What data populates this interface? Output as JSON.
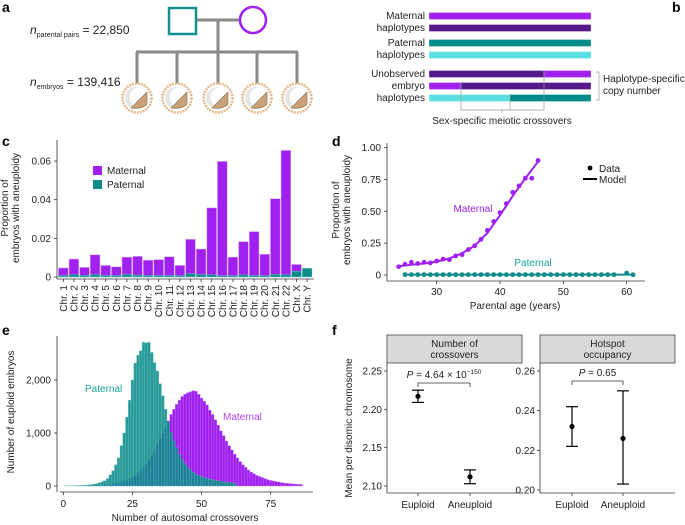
{
  "panel_labels": {
    "a": "a",
    "b": "b",
    "c": "c",
    "d": "d",
    "e": "e",
    "f": "f"
  },
  "panel_a": {
    "n_symbol": "n",
    "parental_pairs_sub": "parental pairs",
    "parental_pairs_value": " = 22,850",
    "embryos_sub": "embryos",
    "embryos_value": " = 139,416",
    "colors": {
      "father": "#13908f",
      "mother": "#a020f0",
      "link": "#8a8a8a",
      "embryo": "#e3b98a"
    }
  },
  "panel_b": {
    "maternal_label": [
      "Maternal",
      "haplotypes"
    ],
    "paternal_label": [
      "Paternal",
      "haplotypes"
    ],
    "embryo_label": [
      "Unobserved",
      "embryo",
      "haplotypes"
    ],
    "copy_number_label": [
      "Haplotype-specific",
      "copy number"
    ],
    "crossover_label": "Sex-specific meiotic crossovers",
    "colors": {
      "maternal_1": "#a020f0",
      "maternal_2": "#55198b",
      "paternal_1": "#008b8b",
      "paternal_2": "#5ae0e0"
    }
  },
  "chart_data": [
    {
      "id": "c",
      "type": "bar",
      "categories": [
        "Chr. 1",
        "Chr. 2",
        "Chr. 3",
        "Chr. 4",
        "Chr. 5",
        "Chr. 6",
        "Chr. 7",
        "Chr. 8",
        "Chr. 9",
        "Chr. 10",
        "Chr. 11",
        "Chr. 12",
        "Chr. 13",
        "Chr. 14",
        "Chr. 15",
        "Chr. 16",
        "Chr. 17",
        "Chr. 18",
        "Chr. 19",
        "Chr. 20",
        "Chr. 21",
        "Chr. 22",
        "Chr. X",
        "Chr. Y"
      ],
      "series": [
        {
          "name": "Maternal",
          "color": "#a020f0",
          "values": [
            0.0047,
            0.0093,
            0.005,
            0.0115,
            0.006,
            0.0053,
            0.0103,
            0.0107,
            0.0087,
            0.009,
            0.0105,
            0.006,
            0.0195,
            0.0145,
            0.0358,
            0.0598,
            0.0103,
            0.0183,
            0.0235,
            0.0118,
            0.0405,
            0.0655,
            0.0065,
            0
          ]
        },
        {
          "name": "Paternal",
          "color": "#0f8c8a",
          "values": [
            0.0008,
            0.0013,
            0.0009,
            0.0013,
            0.0008,
            0.0008,
            0.0013,
            0.001,
            0.0008,
            0.0008,
            0.0008,
            0.0007,
            0.0018,
            0.0013,
            0.0012,
            0.0007,
            0.0007,
            0.0011,
            0.0008,
            0.0007,
            0.0014,
            0.0012,
            0.003,
            0.0045
          ]
        }
      ],
      "ylabel": [
        "Proportion of",
        "embryos with aneuploidy"
      ],
      "ylim": [
        0,
        0.066
      ],
      "yticks": [
        0,
        0.02,
        0.04,
        0.06
      ],
      "ytick_labels": [
        "0",
        "0.02",
        "0.04",
        "0.06"
      ],
      "legend": "top-left",
      "grid": false
    },
    {
      "id": "d",
      "type": "line",
      "xlabel": "Parental age (years)",
      "ylabel": [
        "Proportion of",
        "embryos with aneuploidy"
      ],
      "xlim": [
        23,
        62
      ],
      "ylim": [
        0,
        1
      ],
      "xticks": [
        30,
        40,
        50,
        60
      ],
      "yticks": [
        0,
        0.25,
        0.5,
        0.75,
        1.0
      ],
      "ytick_labels": [
        "0",
        "0.25",
        "0.50",
        "0.75",
        "1.00"
      ],
      "legend": {
        "position": "top-right",
        "data": "Data",
        "model": "Model"
      },
      "series": [
        {
          "name": "Maternal",
          "color": "#a020f0",
          "data_x": [
            24,
            25,
            26,
            27,
            28,
            29,
            30,
            31,
            32,
            33,
            34,
            35,
            36,
            37,
            38,
            39,
            40,
            41,
            42,
            43,
            44,
            45,
            46
          ],
          "data_y": [
            0.065,
            0.085,
            0.1,
            0.09,
            0.1,
            0.095,
            0.11,
            0.125,
            0.12,
            0.15,
            0.16,
            0.2,
            0.23,
            0.28,
            0.35,
            0.42,
            0.49,
            0.56,
            0.65,
            0.7,
            0.76,
            0.76,
            0.9
          ],
          "model_x": [
            24,
            26,
            28,
            30,
            32,
            34,
            36,
            38,
            40,
            42,
            44,
            46
          ],
          "model_y": [
            0.07,
            0.08,
            0.09,
            0.105,
            0.13,
            0.17,
            0.23,
            0.33,
            0.47,
            0.62,
            0.76,
            0.89
          ]
        },
        {
          "name": "Paternal",
          "color": "#0f8c8a",
          "data_x": [
            25,
            26,
            27,
            28,
            29,
            30,
            31,
            32,
            33,
            34,
            35,
            36,
            37,
            38,
            39,
            40,
            41,
            42,
            43,
            44,
            45,
            46,
            47,
            48,
            49,
            50,
            51,
            52,
            53,
            54,
            55,
            56,
            57,
            58,
            60,
            61
          ],
          "data_y": [
            0.003,
            0.003,
            0.003,
            0.003,
            0.003,
            0.003,
            0.003,
            0.003,
            0.003,
            0.003,
            0.003,
            0.003,
            0.003,
            0.003,
            0.003,
            0.003,
            0.003,
            0.003,
            0.003,
            0.003,
            0.003,
            0.003,
            0.003,
            0.003,
            0.003,
            0.003,
            0.003,
            0.003,
            0.003,
            0.003,
            0.003,
            0.003,
            0.003,
            0.003,
            0.015,
            0.002
          ],
          "model_x": [
            25,
            61
          ],
          "model_y": [
            0.003,
            0.003
          ]
        }
      ]
    },
    {
      "id": "e",
      "type": "bar",
      "xlabel": "Number of autosomal crossovers",
      "ylabel": "Number of euploid embryos",
      "xlim": [
        0,
        90
      ],
      "ylim": [
        0,
        2800
      ],
      "xticks": [
        0,
        25,
        50,
        75
      ],
      "yticks": [
        0,
        1000,
        2000
      ],
      "ytick_labels": [
        "0",
        "1,000",
        "2,000"
      ],
      "series": [
        {
          "name": "Maternal",
          "color": "#a020f0",
          "x_start": 10,
          "values": [
            5,
            6,
            8,
            10,
            15,
            20,
            25,
            30,
            40,
            50,
            60,
            70,
            90,
            110,
            140,
            170,
            200,
            250,
            300,
            360,
            420,
            500,
            580,
            680,
            780,
            880,
            990,
            1110,
            1230,
            1350,
            1450,
            1540,
            1620,
            1690,
            1730,
            1760,
            1780,
            1800,
            1790,
            1730,
            1660,
            1600,
            1530,
            1430,
            1350,
            1250,
            1150,
            1040,
            950,
            850,
            760,
            680,
            600,
            530,
            460,
            400,
            350,
            300,
            260,
            230,
            200,
            180,
            160,
            140,
            120,
            105,
            95,
            85,
            75,
            65,
            55,
            50,
            45,
            40,
            35,
            30,
            30
          ]
        },
        {
          "name": "Paternal",
          "color": "#0f8c8a",
          "x_start": 1,
          "values": [
            5,
            5,
            5,
            5,
            8,
            10,
            12,
            15,
            20,
            25,
            35,
            45,
            60,
            80,
            100,
            140,
            210,
            290,
            400,
            530,
            760,
            1000,
            1300,
            1620,
            2000,
            2320,
            2470,
            2550,
            2710,
            2700,
            2710,
            2520,
            2330,
            2170,
            1930,
            1700,
            1450,
            1210,
            1010,
            850,
            720,
            600,
            500,
            420,
            360,
            300,
            260,
            220,
            200,
            180,
            160,
            150,
            130,
            120,
            110,
            100,
            90,
            80,
            75,
            65,
            60,
            50
          ]
        }
      ]
    },
    {
      "id": "f1",
      "type": "errorbar",
      "header": [
        "Number of",
        "crossovers"
      ],
      "ylabel": "Mean per disomic chromosome",
      "categories": [
        "Euploid",
        "Aneuploid"
      ],
      "means": [
        2.217,
        2.112
      ],
      "ci_low": [
        2.209,
        2.103
      ],
      "ci_high": [
        2.225,
        2.121
      ],
      "ylim": [
        2.095,
        2.275
      ],
      "yticks": [
        2.1,
        2.15,
        2.2,
        2.25
      ],
      "ytick_labels": [
        "2.10",
        "2.15",
        "2.20",
        "2.25"
      ],
      "p_text": "P",
      "p_value": " = 4.64 × 10",
      "p_exponent": "−150"
    },
    {
      "id": "f2",
      "type": "errorbar",
      "header": [
        "Hotspot",
        "occupancy"
      ],
      "categories": [
        "Euploid",
        "Aneuploid"
      ],
      "means": [
        0.232,
        0.226
      ],
      "ci_low": [
        0.222,
        0.203
      ],
      "ci_high": [
        0.242,
        0.25
      ],
      "ylim": [
        0.198,
        0.264
      ],
      "yticks": [
        0.2,
        0.22,
        0.24,
        0.26
      ],
      "ytick_labels": [
        "0.20",
        "0.22",
        "0.24",
        "0.26"
      ],
      "p_text": "P",
      "p_value": " = 0.65",
      "p_exponent": ""
    }
  ]
}
